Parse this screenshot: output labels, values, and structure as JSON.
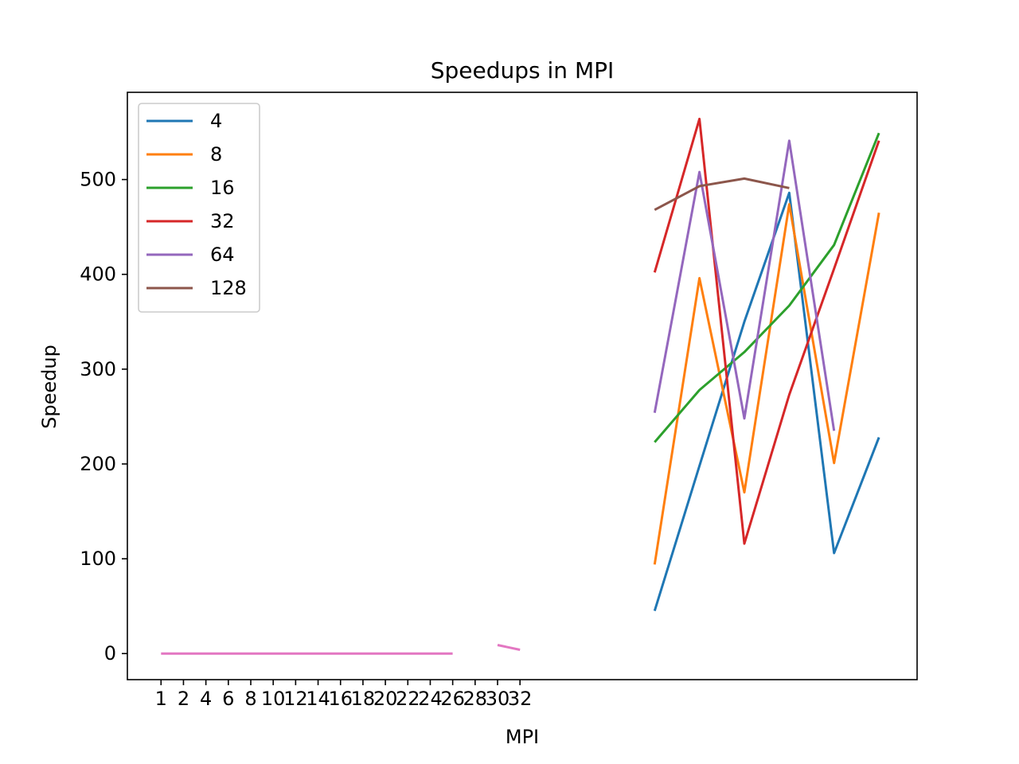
{
  "chart_data": {
    "type": "line",
    "title": "Speedups in MPI",
    "xlabel": "MPI",
    "ylabel": "Speedup",
    "ylim": [
      -27.5,
      592
    ],
    "yticks": [
      0,
      100,
      200,
      300,
      400,
      500
    ],
    "xticks": [
      "1",
      "2",
      "4",
      "6",
      "8",
      "10",
      "12",
      "14",
      "16",
      "18",
      "20",
      "22",
      "24",
      "26",
      "28",
      "30",
      "32"
    ],
    "xlim": [
      -1.5,
      33.7
    ],
    "grid": false,
    "legend": {
      "placement": "top-left",
      "title": ""
    },
    "series": [
      {
        "name": "4",
        "color": "#1f77b4",
        "x": [
          22,
          24,
          26,
          28,
          30,
          32
        ],
        "y": [
          45,
          198,
          350,
          486,
          106,
          228
        ]
      },
      {
        "name": "8",
        "color": "#ff7f0e",
        "x": [
          22,
          24,
          26,
          28,
          30,
          32
        ],
        "y": [
          94,
          396,
          170,
          474,
          201,
          465
        ]
      },
      {
        "name": "16",
        "color": "#2ca02c",
        "x": [
          22,
          24,
          26,
          28,
          30,
          32
        ],
        "y": [
          223,
          278,
          318,
          367,
          431,
          549
        ]
      },
      {
        "name": "32",
        "color": "#d62728",
        "x": [
          22,
          24,
          26,
          28,
          30,
          32
        ],
        "y": [
          402,
          564,
          116,
          273,
          406,
          541
        ]
      },
      {
        "name": "64",
        "color": "#9467bd",
        "x": [
          22,
          24,
          26,
          28,
          30
        ],
        "y": [
          254,
          508,
          248,
          541,
          235
        ]
      },
      {
        "name": "128",
        "color": "#8c564b",
        "x": [
          22,
          24,
          26,
          28
        ],
        "y": [
          468,
          493,
          501,
          491
        ]
      },
      {
        "name": "",
        "color": "#e377c2",
        "x": [
          0,
          1,
          2,
          3,
          4,
          5,
          6,
          7,
          8,
          9,
          10,
          11,
          12,
          13
        ],
        "y": [
          0,
          0,
          0,
          0,
          0,
          0,
          0,
          0,
          0,
          0,
          0,
          0,
          0,
          0
        ]
      },
      {
        "name": "",
        "color": "#e377c2",
        "x": [
          15,
          16
        ],
        "y": [
          9,
          4
        ]
      }
    ]
  }
}
